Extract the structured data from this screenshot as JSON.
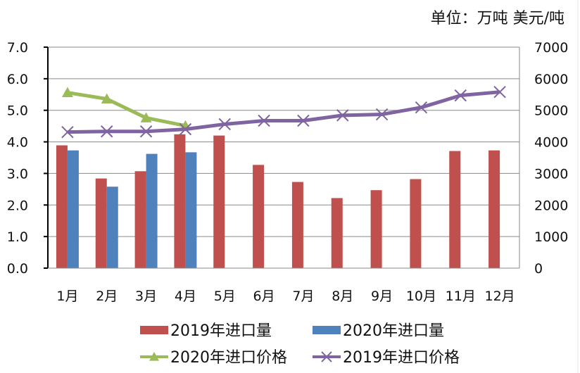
{
  "unit_label": "单位：万吨 美元/吨",
  "chart_data": {
    "type": "bar",
    "title": "",
    "categories": [
      "1月",
      "2月",
      "3月",
      "4月",
      "5月",
      "6月",
      "7月",
      "8月",
      "9月",
      "10月",
      "11月",
      "12月"
    ],
    "y_left": {
      "range": [
        0,
        7
      ],
      "ticks": [
        "0.0",
        "1.0",
        "2.0",
        "3.0",
        "4.0",
        "5.0",
        "6.0",
        "7.0"
      ],
      "label": "万吨"
    },
    "y_right": {
      "range": [
        0,
        7000
      ],
      "ticks": [
        "0",
        "1000",
        "2000",
        "3000",
        "4000",
        "5000",
        "6000",
        "7000"
      ],
      "label": "美元/吨"
    },
    "grid": true,
    "legend_position": "bottom",
    "series": [
      {
        "name": "2019年进口量",
        "type": "bar",
        "axis": "left",
        "color": "#C0504D",
        "values": [
          3.89,
          2.84,
          3.07,
          4.24,
          4.2,
          3.27,
          2.73,
          2.22,
          2.47,
          2.82,
          3.71,
          3.73
        ]
      },
      {
        "name": "2020年进口量",
        "type": "bar",
        "axis": "left",
        "color": "#4F81BD",
        "values": [
          3.73,
          2.58,
          3.62,
          3.67,
          null,
          null,
          null,
          null,
          null,
          null,
          null,
          null
        ]
      },
      {
        "name": "2020年进口价格",
        "type": "line",
        "axis": "right",
        "color": "#9BBB59",
        "marker": "triangle",
        "values": [
          5560,
          5360,
          4760,
          4510,
          null,
          null,
          null,
          null,
          null,
          null,
          null,
          null
        ]
      },
      {
        "name": "2019年进口价格",
        "type": "line",
        "axis": "right",
        "color": "#8064A2",
        "marker": "x",
        "values": [
          4310,
          4330,
          4330,
          4400,
          4560,
          4670,
          4670,
          4840,
          4870,
          5090,
          5470,
          5580
        ]
      }
    ]
  }
}
